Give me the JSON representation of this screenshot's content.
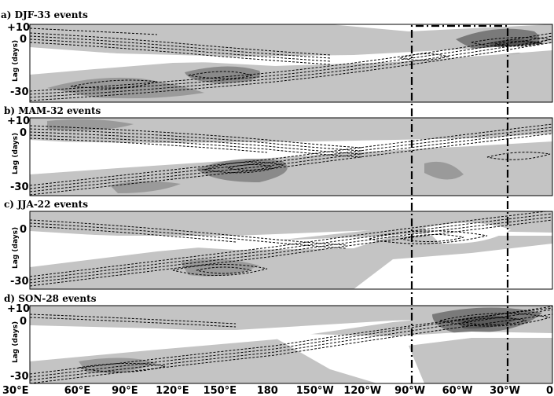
{
  "figure": {
    "y_axis_label": "Lag (days)",
    "y_ticks": [
      "+10",
      "0",
      "-30"
    ],
    "x_ticks": [
      "30°E",
      "60°E",
      "90°E",
      "120°E",
      "150°E",
      "180",
      "150°W",
      "120°W",
      "90°W",
      "60°W",
      "30°W",
      "0"
    ],
    "panels": [
      {
        "title": "a) DJF-33 events"
      },
      {
        "title": "b) MAM-32 events"
      },
      {
        "title": "c) JJA-22 events"
      },
      {
        "title": "d) SON-28 events"
      }
    ],
    "colors": {
      "light_shade": "#c4c4c4",
      "mid_shade": "#9a9a9a",
      "dark_shade": "#6e6e6e",
      "contour": "#000000"
    }
  }
}
